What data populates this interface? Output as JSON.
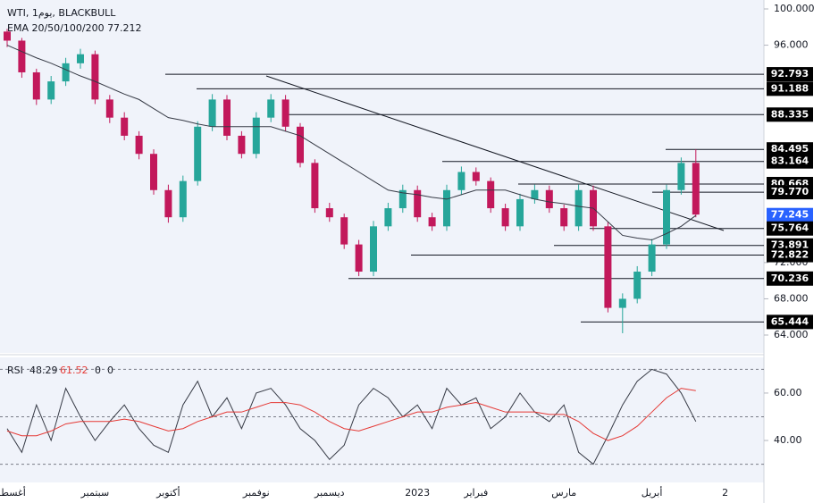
{
  "chart_data": {
    "type": "candlestick",
    "legend": [
      "WTI, يوم1, BLACKBULL",
      "EMA 20/50/100/200 77.212"
    ],
    "rsi_header": [
      "RSI",
      "48.29",
      "61.52",
      "0",
      "0"
    ],
    "categories": [
      "أغسطس",
      null,
      null,
      null,
      null,
      null,
      "سبتمبر",
      null,
      null,
      null,
      null,
      "أكتوبر",
      null,
      null,
      null,
      null,
      null,
      "نوفمبر",
      null,
      null,
      null,
      null,
      "ديسمبر",
      null,
      null,
      null,
      null,
      null,
      "2023",
      null,
      null,
      null,
      "فبراير",
      null,
      null,
      null,
      null,
      null,
      "مارس",
      null,
      null,
      null,
      null,
      null,
      "أبريل",
      null,
      null,
      null,
      null,
      "2"
    ],
    "open": [
      97.5,
      96.5,
      93,
      90,
      92,
      94,
      95,
      90,
      88,
      86,
      84,
      80,
      77,
      81,
      87,
      90,
      86,
      84,
      88,
      90,
      87,
      83,
      78,
      77,
      74,
      71,
      76,
      78,
      80,
      77,
      76,
      80,
      82,
      81,
      78,
      76,
      79,
      80,
      78,
      76,
      80,
      76,
      67,
      68,
      71,
      74,
      80,
      83,
      null,
      null
    ],
    "high": [
      97.8,
      96.8,
      93.4,
      92.6,
      94.6,
      95.6,
      95.4,
      90.5,
      88.6,
      86.5,
      84.5,
      80.6,
      81.6,
      87.6,
      90.6,
      90.5,
      86.5,
      88.6,
      90.6,
      90.5,
      87.4,
      83.4,
      78.6,
      77.4,
      74.5,
      76.6,
      78.6,
      80.6,
      80.5,
      77.5,
      80.6,
      82.6,
      82.5,
      81.4,
      78.5,
      79.6,
      80.6,
      80.5,
      78.4,
      80.6,
      80.5,
      76.5,
      68.6,
      71.6,
      74.6,
      80.6,
      83.6,
      84.5,
      null,
      null
    ],
    "low": [
      95.8,
      92.4,
      89.4,
      89.5,
      91.5,
      93.4,
      89.5,
      87.4,
      85.5,
      83.4,
      79.5,
      76.4,
      76.5,
      80.5,
      86.5,
      85.5,
      83.5,
      83.5,
      87.5,
      86.5,
      82.5,
      77.5,
      76.5,
      73.5,
      70.5,
      70.5,
      75.5,
      77.5,
      76.5,
      75.5,
      75.5,
      79.5,
      80.5,
      77.5,
      75.5,
      75.5,
      78.5,
      77.5,
      75.5,
      75.5,
      75.5,
      66.5,
      64.2,
      67.5,
      70.5,
      73.5,
      79.5,
      77.0,
      null,
      null
    ],
    "close": [
      96.5,
      93,
      90,
      92,
      94,
      95,
      90,
      88,
      86,
      84,
      80,
      77,
      81,
      87,
      90,
      86,
      84,
      88,
      90,
      87,
      83,
      78,
      77,
      74,
      71,
      76,
      78,
      80,
      77,
      76,
      80,
      82,
      81,
      78,
      76,
      79,
      80,
      78,
      76,
      80,
      76,
      67,
      68,
      71,
      74,
      80,
      83,
      77.3,
      null,
      null
    ],
    "ema": [
      96,
      95.3,
      94.6,
      94,
      93.3,
      92.6,
      92,
      91.3,
      90.6,
      90,
      89,
      88,
      87.7,
      87.3,
      87,
      87,
      87,
      87,
      87,
      86.5,
      86,
      85,
      84,
      83,
      82,
      81,
      80,
      79.7,
      79.5,
      79.2,
      79,
      79.5,
      80,
      80,
      80,
      79.5,
      79,
      78.7,
      78.5,
      78.2,
      78,
      76.5,
      75,
      74.7,
      74.5,
      75.2,
      76,
      77.2,
      null,
      null
    ],
    "colors": {
      "up": "#26a69a",
      "down": "#c2185b",
      "ema": "#363a45",
      "rsi": "#363a45",
      "rsi_ma": "#e53935",
      "level_box": "#000000",
      "current_box": "#2962ff"
    },
    "ylim": [
      64,
      100
    ],
    "yticks": [
      {
        "value": 100,
        "label": "100.000"
      },
      {
        "value": 96,
        "label": "96.000"
      },
      {
        "value": 72,
        "label": "72.000"
      },
      {
        "value": 68,
        "label": "68.000"
      },
      {
        "value": 64,
        "label": "64.000"
      }
    ],
    "levels": [
      {
        "value": 92.793,
        "label": "92.793"
      },
      {
        "value": 91.188,
        "label": "91.188"
      },
      {
        "value": 88.335,
        "label": "88.335"
      },
      {
        "value": 84.495,
        "label": "84.495"
      },
      {
        "value": 83.164,
        "label": "83.164"
      },
      {
        "value": 80.668,
        "label": "80.668"
      },
      {
        "value": 79.77,
        "label": "79.770"
      },
      {
        "value": 77.245,
        "label": "77.245"
      },
      {
        "value": 75.764,
        "label": "75.764"
      },
      {
        "value": 73.891,
        "label": "73.891"
      },
      {
        "value": 72.822,
        "label": "72.822"
      },
      {
        "value": 70.236,
        "label": "70.236"
      },
      {
        "value": 65.444,
        "label": "65.444"
      }
    ],
    "current_level": 77.245,
    "rsi": [
      45,
      35,
      55,
      40,
      62,
      50,
      40,
      48,
      55,
      45,
      38,
      35,
      55,
      65,
      50,
      58,
      45,
      60,
      62,
      55,
      45,
      40,
      32,
      38,
      55,
      62,
      58,
      50,
      55,
      45,
      62,
      55,
      58,
      45,
      50,
      60,
      52,
      48,
      55,
      35,
      30,
      42,
      55,
      65,
      70,
      68,
      60,
      48,
      null,
      null
    ],
    "rsi_ma": [
      44,
      42,
      42,
      44,
      47,
      48,
      48,
      48,
      49,
      48,
      46,
      44,
      45,
      48,
      50,
      52,
      52,
      54,
      56,
      56,
      55,
      52,
      48,
      45,
      44,
      46,
      48,
      50,
      52,
      52,
      54,
      55,
      56,
      54,
      52,
      52,
      52,
      51,
      51,
      48,
      43,
      40,
      42,
      46,
      52,
      58,
      62,
      61,
      null,
      null
    ],
    "rsi_ylim": [
      22.3,
      74.3
    ],
    "rsi_yticks": [
      {
        "value": 60,
        "label": "60.00"
      },
      {
        "value": 40,
        "label": "40.00"
      }
    ],
    "rsi_bands": [
      70,
      50,
      30
    ]
  }
}
